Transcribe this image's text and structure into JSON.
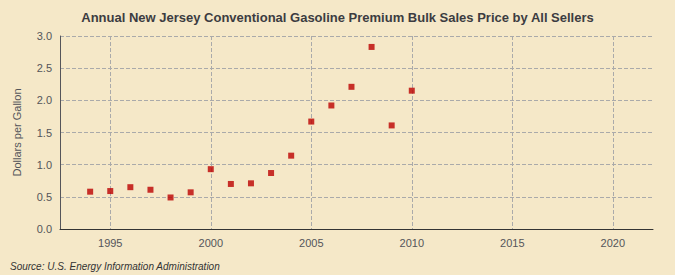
{
  "chart_data": {
    "type": "scatter",
    "title": "Annual New Jersey Conventional Gasoline Premium Bulk Sales Price by All Sellers",
    "ylabel": "Dollars per Gallon",
    "annotations": [
      "Source: U.S. Energy Information Administration"
    ],
    "x": [
      1994,
      1995,
      1996,
      1997,
      1998,
      1999,
      2000,
      2001,
      2002,
      2003,
      2004,
      2005,
      2006,
      2007,
      2008,
      2009,
      2010
    ],
    "values": [
      0.58,
      0.59,
      0.65,
      0.61,
      0.49,
      0.57,
      0.93,
      0.7,
      0.71,
      0.87,
      1.14,
      1.67,
      1.92,
      2.21,
      2.83,
      1.61,
      2.15
    ],
    "color": "#bb0000",
    "marker": "square",
    "xlim": [
      1992.5,
      2022
    ],
    "xticks": [
      1995,
      2000,
      2005,
      2010,
      2015,
      2020
    ],
    "ylim": [
      0.0,
      3.0
    ],
    "yticks": [
      {
        "value": 0,
        "label": "0.0"
      },
      0.5,
      {
        "value": 1,
        "label": "1.0"
      },
      1.5,
      {
        "value": 2,
        "label": "2.0"
      },
      2.5,
      {
        "value": 3,
        "label": "3.0"
      }
    ],
    "grid": true
  }
}
